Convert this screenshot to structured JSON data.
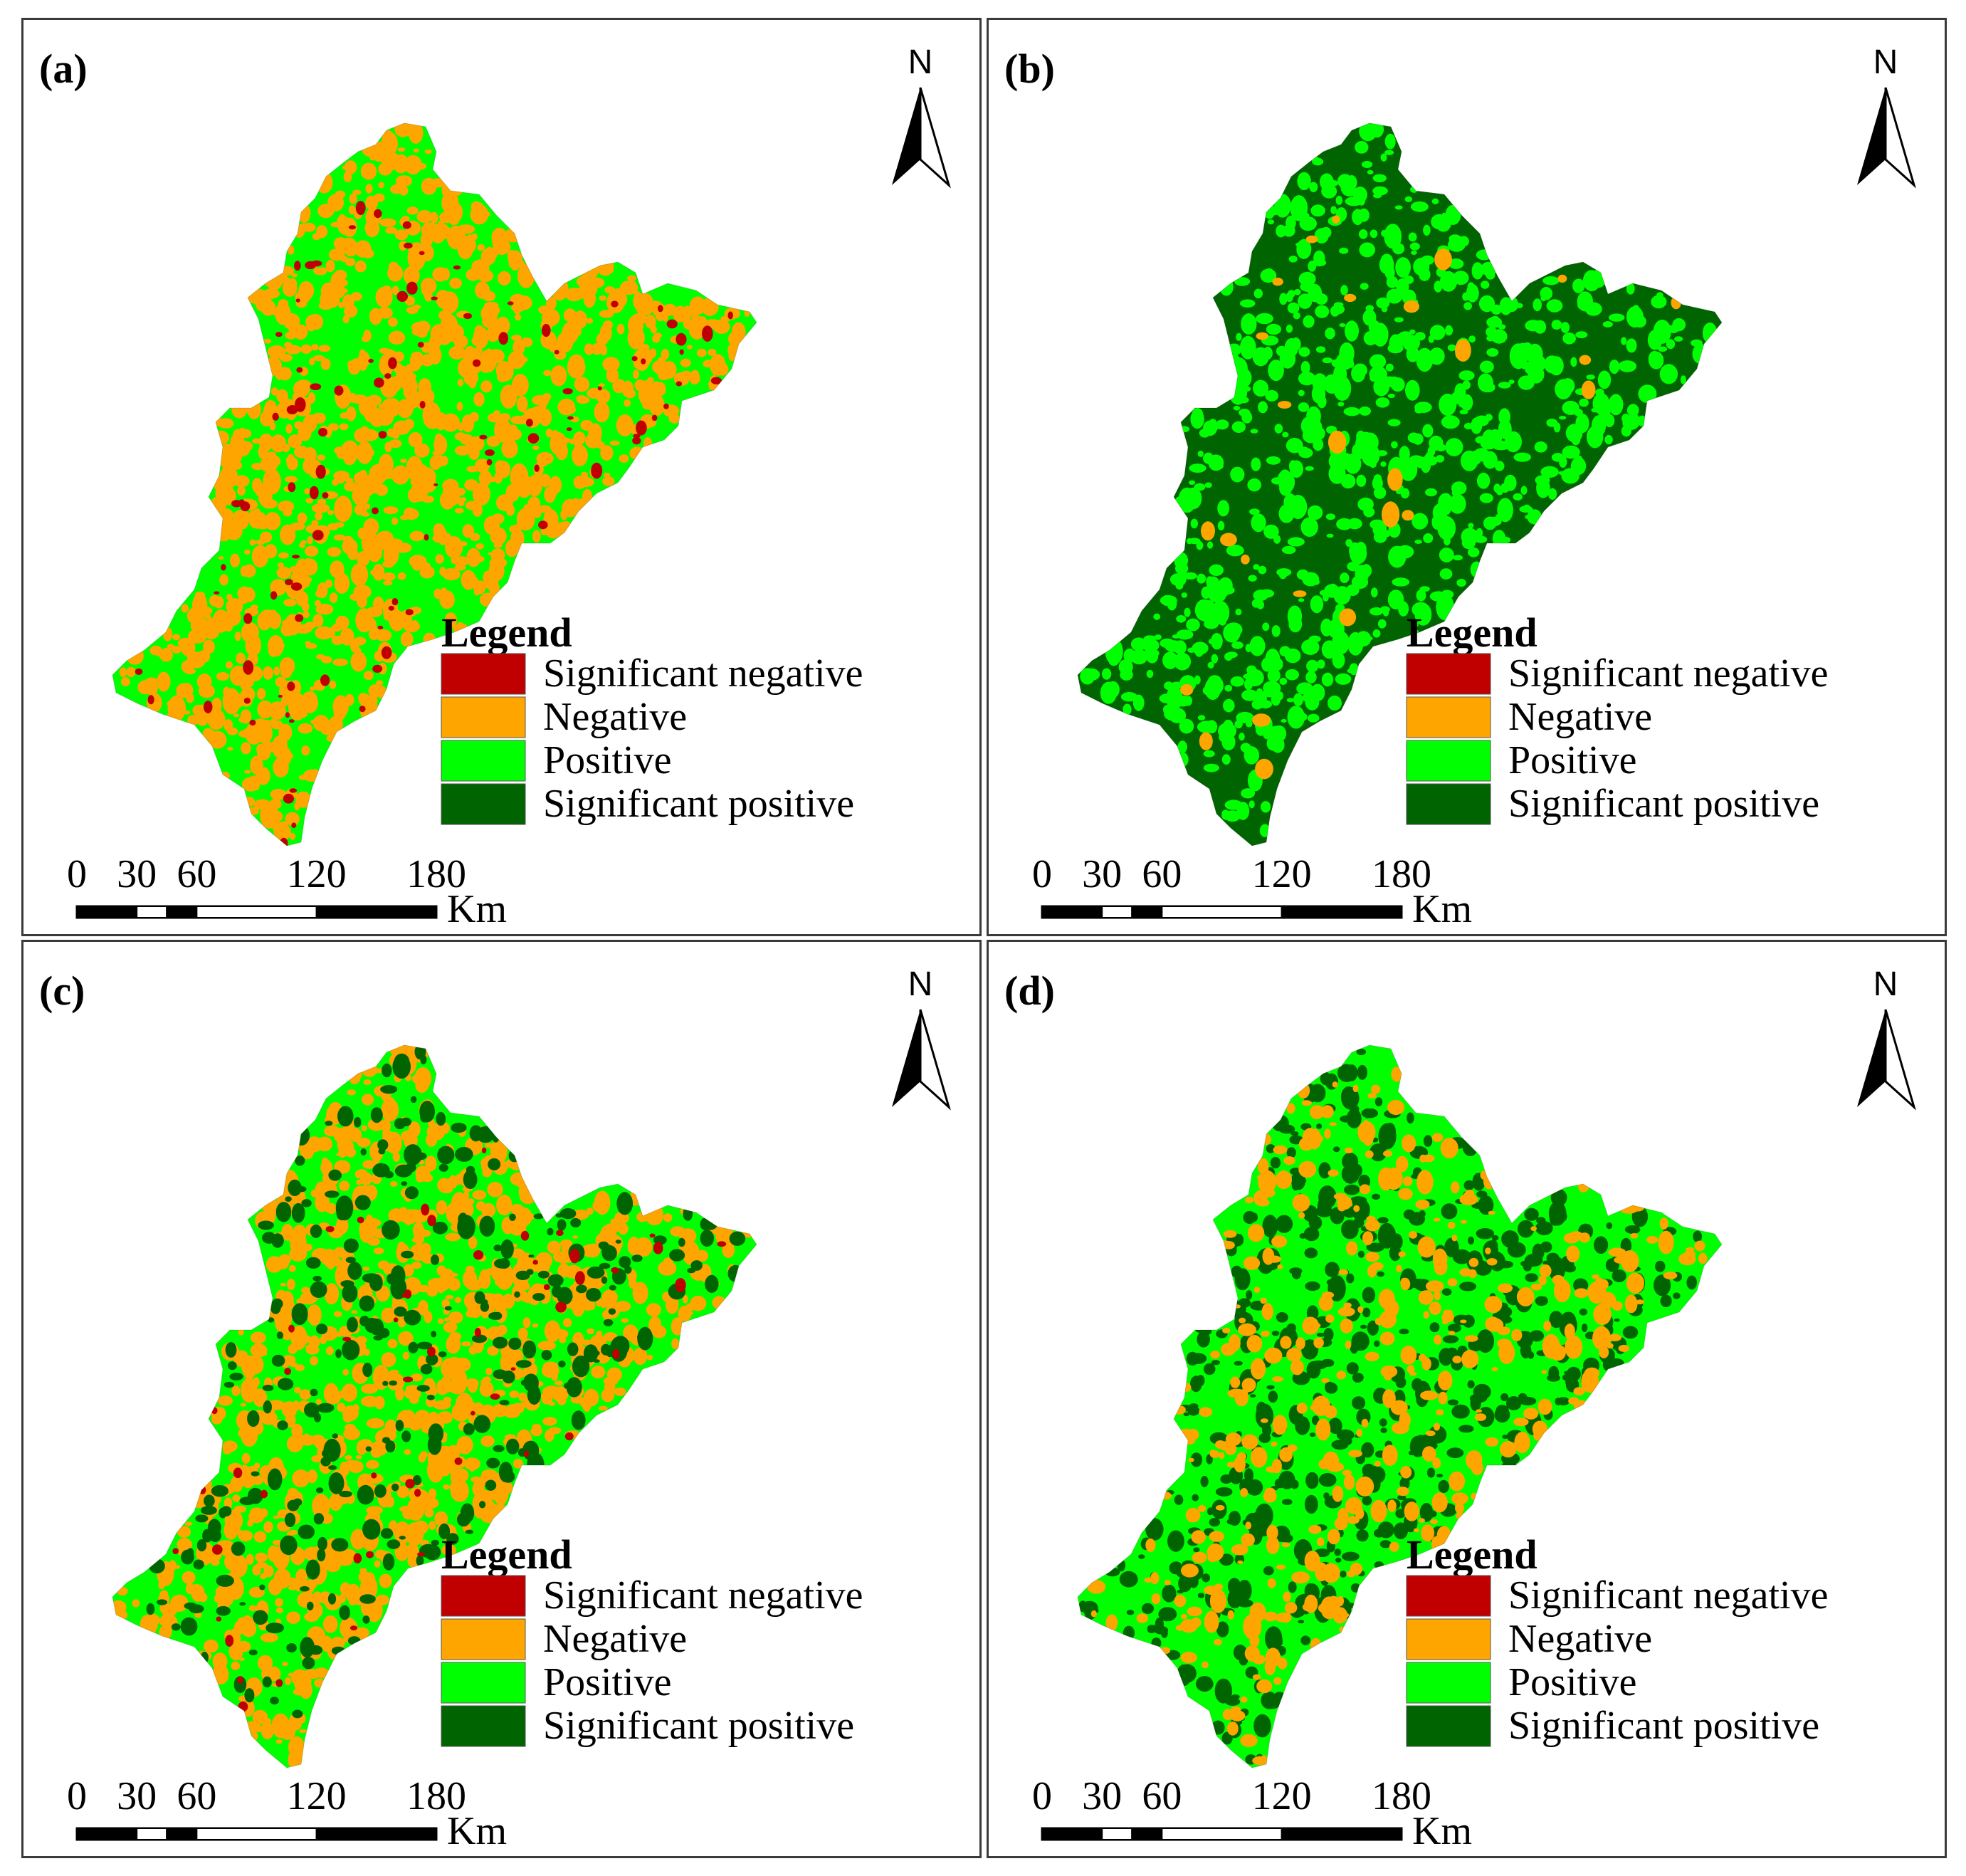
{
  "colors": {
    "significant_negative": "#c00000",
    "negative": "#ffa500",
    "positive": "#00ff00",
    "significant_positive": "#006400",
    "frame": "#3a3a3a"
  },
  "north_label": "N",
  "legend": {
    "title": "Legend",
    "items": [
      {
        "label": "Significant negative",
        "color": "#c00000"
      },
      {
        "label": "Negative",
        "color": "#ffa500"
      },
      {
        "label": "Positive",
        "color": "#00ff00"
      },
      {
        "label": "Significant positive",
        "color": "#006400"
      }
    ]
  },
  "scale_bar": {
    "ticks": [
      "0",
      "30",
      "60",
      "120",
      "180"
    ],
    "unit": "Km"
  },
  "panels": [
    {
      "label": "(a)",
      "base": "#00ff00",
      "patches": [
        {
          "c": "#ffa500",
          "share": 0.45
        },
        {
          "c": "#c00000",
          "share": 0.04
        }
      ]
    },
    {
      "label": "(b)",
      "base": "#006400",
      "patches": [
        {
          "c": "#00ff00",
          "share": 0.3
        },
        {
          "c": "#ffa500",
          "share": 0.01
        }
      ]
    },
    {
      "label": "(c)",
      "base": "#00ff00",
      "patches": [
        {
          "c": "#ffa500",
          "share": 0.4
        },
        {
          "c": "#006400",
          "share": 0.12
        },
        {
          "c": "#c00000",
          "share": 0.02
        }
      ]
    },
    {
      "label": "(d)",
      "base": "#00ff00",
      "patches": [
        {
          "c": "#006400",
          "share": 0.22
        },
        {
          "c": "#ffa500",
          "share": 0.16
        }
      ]
    }
  ]
}
